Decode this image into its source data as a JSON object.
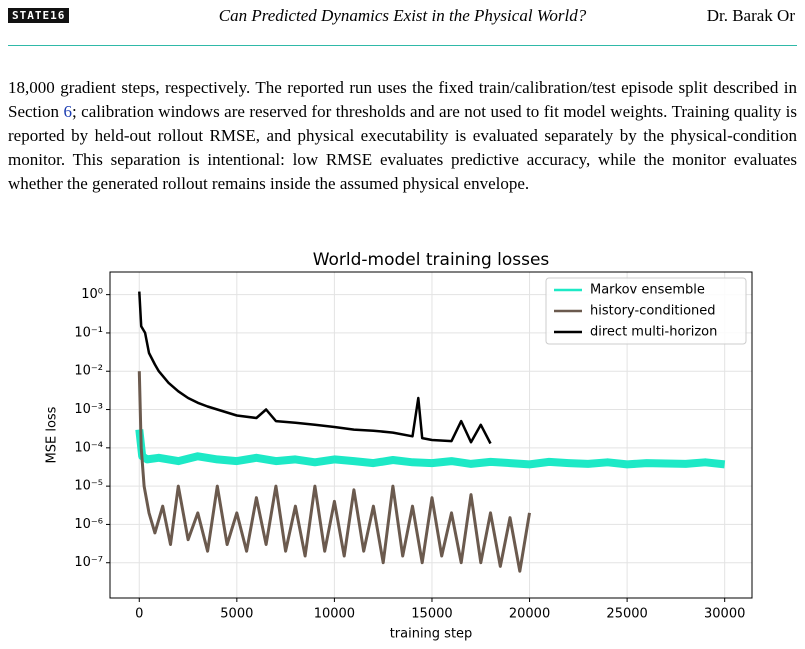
{
  "header": {
    "logo": "STATE16",
    "title": "Can Predicted Dynamics Exist in the Physical World?",
    "author": "Dr. Barak Or"
  },
  "paragraph": [
    "18,000",
    " gradient steps, respectively. The reported run uses the fixed train/calibration/test episode split described in Section ",
    "6",
    "; calibration windows are reserved for thresholds and are not used to fit model weights. Training quality is reported by held-out rollout RMSE, and physical executability is evaluated separately by the physical-condition monitor. This separation is intentional: low RMSE evaluates predictive accuracy, while the monitor evaluates whether the generated rollout remains inside the assumed physical envelope."
  ],
  "chart_data": {
    "type": "line",
    "title": "World-model training losses",
    "xlabel": "training step",
    "ylabel": "MSE loss",
    "xlim": [
      -1500,
      31400
    ],
    "ylim": [
      3.9,
      1.2e-08
    ],
    "log_y": true,
    "grid": true,
    "legend": "upper right",
    "xticks": [
      0,
      5000,
      10000,
      15000,
      20000,
      25000,
      30000
    ],
    "yticks": [
      {
        "value": 1,
        "label": "10⁰"
      },
      {
        "value": 0.1,
        "label": "10⁻¹"
      },
      {
        "value": 0.01,
        "label": "10⁻²"
      },
      {
        "value": 0.001,
        "label": "10⁻³"
      },
      {
        "value": 0.0001,
        "label": "10⁻⁴"
      },
      {
        "value": 1e-05,
        "label": "10⁻⁵"
      },
      {
        "value": 1e-06,
        "label": "10⁻⁶"
      },
      {
        "value": 1e-07,
        "label": "10⁻⁷"
      }
    ],
    "series": [
      {
        "name": "Markov ensemble",
        "color": "#1de9c6",
        "width": 8,
        "x": [
          0,
          150,
          400,
          1000,
          2000,
          3000,
          4000,
          5000,
          6000,
          7000,
          8000,
          9000,
          10000,
          11000,
          12000,
          13000,
          14000,
          15000,
          16000,
          17000,
          18000,
          19000,
          20000,
          21000,
          22000,
          23000,
          24000,
          25000,
          26000,
          27000,
          28000,
          29000,
          30000
        ],
        "values": [
          0.0003,
          6e-05,
          5e-05,
          5.5e-05,
          4.5e-05,
          6e-05,
          5e-05,
          4.5e-05,
          5.5e-05,
          4.5e-05,
          5e-05,
          4.2e-05,
          5e-05,
          4.5e-05,
          4e-05,
          4.8e-05,
          4.2e-05,
          4e-05,
          4.5e-05,
          3.8e-05,
          4.3e-05,
          4e-05,
          3.7e-05,
          4.3e-05,
          4e-05,
          3.8e-05,
          4.2e-05,
          3.7e-05,
          4e-05,
          3.9e-05,
          3.8e-05,
          4.2e-05,
          3.7e-05
        ]
      },
      {
        "name": "history-conditioned",
        "color": "#6b5a4e",
        "width": 3,
        "x": [
          0,
          100,
          250,
          500,
          800,
          1200,
          1600,
          2000,
          2500,
          3000,
          3500,
          4000,
          4500,
          5000,
          5500,
          6000,
          6500,
          7000,
          7500,
          8000,
          8500,
          9000,
          9500,
          10000,
          10500,
          11000,
          11500,
          12000,
          12500,
          13000,
          13500,
          14000,
          14500,
          15000,
          15500,
          16000,
          16500,
          17000,
          17500,
          18000,
          18500,
          19000,
          19500,
          20000
        ],
        "values": [
          0.01,
          0.0001,
          1e-05,
          2e-06,
          6e-07,
          3e-06,
          3e-07,
          1e-05,
          4e-07,
          2e-06,
          2e-07,
          1e-05,
          3e-07,
          2e-06,
          2e-07,
          5e-06,
          3e-07,
          1e-05,
          2e-07,
          3e-06,
          1.5e-07,
          1e-05,
          2e-07,
          4e-06,
          1.5e-07,
          8e-06,
          2e-07,
          3e-06,
          1e-07,
          1e-05,
          1.5e-07,
          3e-06,
          1e-07,
          5e-06,
          1.5e-07,
          2e-06,
          1e-07,
          6e-06,
          1e-07,
          2e-06,
          8e-08,
          1.5e-06,
          6e-08,
          2e-06
        ]
      },
      {
        "name": "direct multi-horizon",
        "color": "#000000",
        "width": 2.5,
        "x": [
          0,
          100,
          300,
          500,
          800,
          1000,
          1500,
          2000,
          2500,
          3000,
          3500,
          4000,
          5000,
          6000,
          6500,
          7000,
          8000,
          9000,
          10000,
          11000,
          12000,
          13000,
          14000,
          14300,
          14500,
          15000,
          16000,
          16500,
          17000,
          17500,
          18000
        ],
        "values": [
          1.2,
          0.15,
          0.1,
          0.03,
          0.015,
          0.01,
          0.005,
          0.003,
          0.002,
          0.0015,
          0.0012,
          0.001,
          0.0007,
          0.0006,
          0.001,
          0.0005,
          0.00045,
          0.0004,
          0.00035,
          0.0003,
          0.00028,
          0.00025,
          0.0002,
          0.002,
          0.00018,
          0.00016,
          0.00015,
          0.0005,
          0.00014,
          0.0004,
          0.00013
        ]
      }
    ]
  }
}
